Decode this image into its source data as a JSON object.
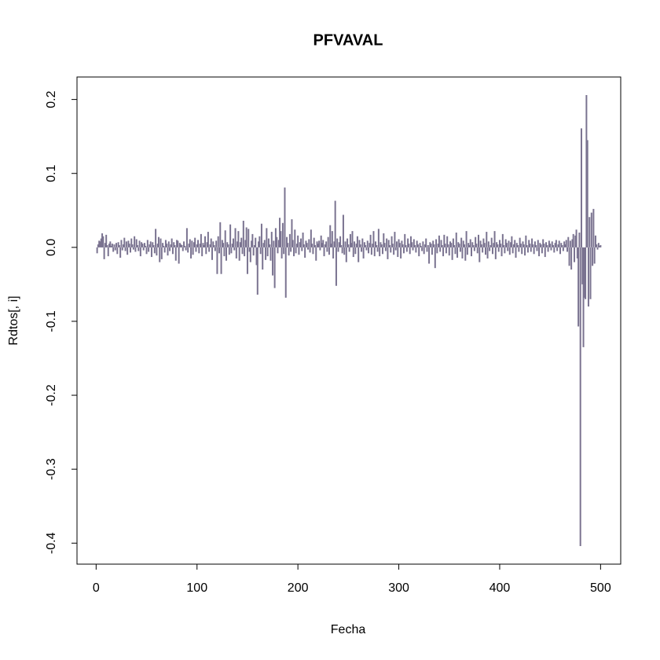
{
  "chart_data": {
    "type": "spike",
    "title": "PFVAVAL",
    "x_label": "Fecha",
    "y_label": "Rdtos[, i]",
    "color": "#7a7390",
    "xlim": [
      -18.96,
      519.96
    ],
    "xticks": [
      0,
      100,
      200,
      300,
      400,
      500
    ],
    "ylim": [
      -0.4284,
      0.2304
    ],
    "yticks": [
      -0.4,
      -0.3,
      -0.2,
      -0.1,
      {
        "value": 0,
        "label": "0.0"
      },
      0.1,
      0.2
    ],
    "x": [
      1,
      2,
      3,
      4,
      5,
      6,
      7,
      8,
      9,
      10,
      11,
      12,
      13,
      14,
      15,
      16,
      17,
      18,
      19,
      20,
      21,
      22,
      23,
      24,
      25,
      26,
      27,
      28,
      29,
      30,
      31,
      32,
      33,
      34,
      35,
      36,
      37,
      38,
      39,
      40,
      41,
      42,
      43,
      44,
      45,
      46,
      47,
      48,
      49,
      50,
      51,
      52,
      53,
      54,
      55,
      56,
      57,
      58,
      59,
      60,
      61,
      62,
      63,
      64,
      65,
      66,
      67,
      68,
      69,
      70,
      71,
      72,
      73,
      74,
      75,
      76,
      77,
      78,
      79,
      80,
      81,
      82,
      83,
      84,
      85,
      86,
      87,
      88,
      89,
      90,
      91,
      92,
      93,
      94,
      95,
      96,
      97,
      98,
      99,
      100,
      101,
      102,
      103,
      104,
      105,
      106,
      107,
      108,
      109,
      110,
      111,
      112,
      113,
      114,
      115,
      116,
      117,
      118,
      119,
      120,
      121,
      122,
      123,
      124,
      125,
      126,
      127,
      128,
      129,
      130,
      131,
      132,
      133,
      134,
      135,
      136,
      137,
      138,
      139,
      140,
      141,
      142,
      143,
      144,
      145,
      146,
      147,
      148,
      149,
      150,
      151,
      152,
      153,
      154,
      155,
      156,
      157,
      158,
      159,
      160,
      161,
      162,
      163,
      164,
      165,
      166,
      167,
      168,
      169,
      170,
      171,
      172,
      173,
      174,
      175,
      176,
      177,
      178,
      179,
      180,
      181,
      182,
      183,
      184,
      185,
      186,
      187,
      188,
      189,
      190,
      191,
      192,
      193,
      194,
      195,
      196,
      197,
      198,
      199,
      200,
      201,
      202,
      203,
      204,
      205,
      206,
      207,
      208,
      209,
      210,
      211,
      212,
      213,
      214,
      215,
      216,
      217,
      218,
      219,
      220,
      221,
      222,
      223,
      224,
      225,
      226,
      227,
      228,
      229,
      230,
      231,
      232,
      233,
      234,
      235,
      236,
      237,
      238,
      239,
      240,
      241,
      242,
      243,
      244,
      245,
      246,
      247,
      248,
      249,
      250,
      251,
      252,
      253,
      254,
      255,
      256,
      257,
      258,
      259,
      260,
      261,
      262,
      263,
      264,
      265,
      266,
      267,
      268,
      269,
      270,
      271,
      272,
      273,
      274,
      275,
      276,
      277,
      278,
      279,
      280,
      281,
      282,
      283,
      284,
      285,
      286,
      287,
      288,
      289,
      290,
      291,
      292,
      293,
      294,
      295,
      296,
      297,
      298,
      299,
      300,
      301,
      302,
      303,
      304,
      305,
      306,
      307,
      308,
      309,
      310,
      311,
      312,
      313,
      314,
      315,
      316,
      317,
      318,
      319,
      320,
      321,
      322,
      323,
      324,
      325,
      326,
      327,
      328,
      329,
      330,
      331,
      332,
      333,
      334,
      335,
      336,
      337,
      338,
      339,
      340,
      341,
      342,
      343,
      344,
      345,
      346,
      347,
      348,
      349,
      350,
      351,
      352,
      353,
      354,
      355,
      356,
      357,
      358,
      359,
      360,
      361,
      362,
      363,
      364,
      365,
      366,
      367,
      368,
      369,
      370,
      371,
      372,
      373,
      374,
      375,
      376,
      377,
      378,
      379,
      380,
      381,
      382,
      383,
      384,
      385,
      386,
      387,
      388,
      389,
      390,
      391,
      392,
      393,
      394,
      395,
      396,
      397,
      398,
      399,
      400,
      401,
      402,
      403,
      404,
      405,
      406,
      407,
      408,
      409,
      410,
      411,
      412,
      413,
      414,
      415,
      416,
      417,
      418,
      419,
      420,
      421,
      422,
      423,
      424,
      425,
      426,
      427,
      428,
      429,
      430,
      431,
      432,
      433,
      434,
      435,
      436,
      437,
      438,
      439,
      440,
      441,
      442,
      443,
      444,
      445,
      446,
      447,
      448,
      449,
      450,
      451,
      452,
      453,
      454,
      455,
      456,
      457,
      458,
      459,
      460,
      461,
      462,
      463,
      464,
      465,
      466,
      467,
      468,
      469,
      470,
      471,
      472,
      473,
      474,
      475,
      476,
      477,
      478,
      479,
      480,
      481,
      482,
      483,
      484,
      485,
      486,
      487,
      488,
      489,
      490,
      491,
      492,
      493,
      494,
      495,
      496,
      497,
      498,
      499,
      500
    ],
    "values": [
      -0.008,
      0.004,
      0.009,
      0.008,
      0.012,
      0.019,
      0.015,
      -0.016,
      0.006,
      0.017,
      0.003,
      -0.012,
      0.005,
      0.008,
      0.002,
      0.005,
      -0.006,
      0.004,
      -0.004,
      0.006,
      -0.009,
      0.007,
      0.003,
      -0.014,
      0.01,
      -0.004,
      0.004,
      0.013,
      -0.005,
      0.008,
      -0.01,
      0.009,
      0.005,
      -0.007,
      0.012,
      0.004,
      -0.003,
      0.015,
      -0.006,
      0.011,
      0.003,
      -0.005,
      0.009,
      -0.012,
      0.007,
      0.005,
      -0.004,
      0.006,
      0.002,
      -0.009,
      0.01,
      -0.006,
      0.004,
      0.008,
      -0.013,
      0.007,
      0.003,
      -0.008,
      0.025,
      -0.011,
      0.005,
      0.014,
      -0.02,
      0.012,
      -0.016,
      0.006,
      0.002,
      -0.007,
      0.01,
      0.005,
      -0.011,
      0.008,
      -0.005,
      0.004,
      0.012,
      -0.009,
      0.007,
      0.003,
      -0.018,
      0.01,
      0.009,
      -0.022,
      0.006,
      0.004,
      0.003,
      -0.005,
      0.008,
      0.002,
      -0.004,
      0.026,
      -0.007,
      0.005,
      0.011,
      -0.015,
      0.009,
      -0.01,
      0.007,
      0.013,
      -0.006,
      0.004,
      0.01,
      -0.008,
      0.005,
      0.018,
      -0.012,
      0.006,
      0.003,
      0.015,
      -0.009,
      0.007,
      0.021,
      -0.006,
      0.004,
      0.012,
      -0.017,
      0.008,
      0.003,
      -0.005,
      0.009,
      -0.036,
      0.015,
      -0.008,
      0.034,
      -0.036,
      0.01,
      0.006,
      -0.012,
      0.023,
      -0.018,
      0.007,
      0.004,
      -0.01,
      0.031,
      -0.008,
      0.005,
      0.012,
      -0.004,
      0.026,
      -0.015,
      0.008,
      0.022,
      -0.018,
      0.007,
      0.013,
      -0.009,
      0.036,
      -0.012,
      0.01,
      0.027,
      -0.036,
      0.025,
      -0.006,
      -0.02,
      0.009,
      0.018,
      -0.011,
      0.003,
      0.013,
      -0.024,
      -0.064,
      0.008,
      0.015,
      -0.009,
      0.032,
      -0.03,
      0.006,
      0.01,
      -0.017,
      0.026,
      -0.012,
      0.012,
      0.004,
      -0.018,
      0.021,
      -0.038,
      0.009,
      -0.055,
      0.026,
      0.014,
      -0.008,
      0.01,
      0.04,
      0.022,
      -0.015,
      0.033,
      -0.009,
      0.081,
      -0.068,
      0.014,
      0.006,
      -0.011,
      0.018,
      -0.006,
      0.038,
      0.01,
      -0.012,
      0.024,
      -0.008,
      0.005,
      0.016,
      -0.01,
      0.007,
      0.012,
      -0.005,
      0.02,
      0.004,
      -0.014,
      0.009,
      0.006,
      -0.003,
      0.011,
      -0.007,
      0.024,
      0.005,
      -0.009,
      0.013,
      0.003,
      -0.018,
      0.008,
      0.005,
      0.009,
      -0.004,
      0.016,
      0.006,
      0.01,
      -0.012,
      0.004,
      0.008,
      -0.006,
      0.014,
      -0.01,
      0.03,
      0.005,
      0.022,
      -0.015,
      0.008,
      0.063,
      -0.052,
      0.012,
      -0.006,
      0.007,
      0.015,
      0.003,
      -0.008,
      0.044,
      -0.01,
      0.008,
      -0.02,
      0.012,
      0.004,
      -0.006,
      0.018,
      0.006,
      0.022,
      -0.013,
      0.008,
      -0.009,
      0.005,
      0.015,
      -0.02,
      0.01,
      0.004,
      -0.006,
      0.012,
      -0.015,
      0.007,
      0.003,
      -0.004,
      0.009,
      -0.008,
      0.006,
      0.017,
      -0.01,
      0.005,
      0.022,
      -0.012,
      0.008,
      0.003,
      -0.006,
      0.025,
      -0.012,
      0.007,
      0.004,
      -0.009,
      0.019,
      0.006,
      -0.005,
      0.012,
      -0.016,
      0.01,
      0.003,
      -0.007,
      0.015,
      0.005,
      -0.01,
      0.021,
      -0.004,
      0.008,
      -0.013,
      0.011,
      0.006,
      -0.015,
      0.009,
      0.004,
      -0.008,
      0.018,
      0.003,
      -0.006,
      0.012,
      0.005,
      -0.009,
      0.015,
      0.007,
      -0.004,
      0.011,
      0.003,
      -0.007,
      0.009,
      0.004,
      -0.012,
      0.006,
      0.002,
      -0.005,
      0.008,
      -0.009,
      0.004,
      0.012,
      -0.006,
      0.003,
      -0.022,
      0.007,
      0.005,
      -0.01,
      0.009,
      0.004,
      -0.028,
      0.011,
      -0.008,
      0.005,
      0.016,
      -0.006,
      0.01,
      0.003,
      -0.012,
      0.017,
      0.005,
      -0.008,
      0.015,
      0.004,
      -0.011,
      0.008,
      0.006,
      -0.017,
      0.012,
      0.003,
      -0.009,
      0.02,
      -0.014,
      0.007,
      0.005,
      -0.006,
      0.013,
      -0.015,
      0.009,
      0.004,
      -0.018,
      0.022,
      -0.01,
      0.006,
      0.003,
      0.011,
      -0.012,
      0.007,
      0.003,
      -0.005,
      0.014,
      0.005,
      -0.008,
      0.017,
      -0.02,
      0.009,
      0.004,
      -0.007,
      0.012,
      0.006,
      -0.01,
      0.021,
      -0.015,
      0.008,
      -0.005,
      0.003,
      0.013,
      -0.009,
      0.006,
      0.022,
      -0.016,
      0.007,
      0.004,
      -0.006,
      0.01,
      0.005,
      -0.012,
      0.018,
      0.003,
      -0.008,
      0.011,
      0.006,
      -0.005,
      0.009,
      -0.01,
      0.007,
      0.015,
      -0.008,
      0.004,
      0.01,
      -0.014,
      0.006,
      0.003,
      -0.006,
      0.013,
      0.005,
      -0.009,
      0.008,
      0.004,
      -0.011,
      0.016,
      0.003,
      -0.007,
      0.01,
      0.005,
      -0.006,
      0.012,
      0.004,
      -0.009,
      0.008,
      0.003,
      -0.005,
      0.01,
      -0.012,
      0.006,
      0.004,
      -0.008,
      0.011,
      0.005,
      -0.013,
      0.007,
      0.003,
      -0.006,
      0.009,
      0.005,
      -0.004,
      0.008,
      0.003,
      -0.007,
      0.006,
      0.01,
      -0.005,
      0.004,
      0.009,
      -0.009,
      0.006,
      0.003,
      -0.005,
      0.008,
      0.004,
      0.01,
      -0.006,
      0.014,
      -0.025,
      0.009,
      -0.03,
      0.011,
      0.018,
      -0.02,
      0.016,
      0.024,
      -0.015,
      -0.107,
      0.02,
      -0.404,
      0.161,
      -0.05,
      -0.135,
      -0.068,
      -0.07,
      0.206,
      0.145,
      -0.08,
      0.041,
      -0.07,
      0.047,
      -0.025,
      0.052,
      -0.022,
      0.016,
      0.004,
      -0.003,
      0.006,
      0.002,
      0.003
    ]
  }
}
